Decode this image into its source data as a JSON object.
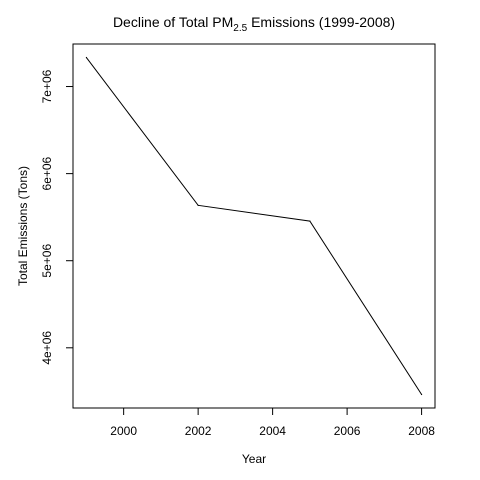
{
  "chart_data": {
    "type": "line",
    "title": {
      "main": "Decline of Total PM",
      "subscript": "2.5",
      "suffix": " Emissions (1999-2008)"
    },
    "xlabel": "Year",
    "ylabel": "Total Emissions (Tons)",
    "x": [
      1999,
      2002,
      2005,
      2008
    ],
    "series": [
      {
        "values": [
          7332967,
          5635780,
          5454703,
          3464206
        ],
        "color": "#000000"
      }
    ],
    "xlim": [
      1998.64,
      2008.36
    ],
    "ylim": [
      3308815,
      7488358
    ],
    "xticks": [
      {
        "value": 2000,
        "label": "2000"
      },
      {
        "value": 2002,
        "label": "2002"
      },
      {
        "value": 2004,
        "label": "2004"
      },
      {
        "value": 2006,
        "label": "2006"
      },
      {
        "value": 2008,
        "label": "2008"
      }
    ],
    "yticks": [
      {
        "value": 4000000,
        "label": "4e+06"
      },
      {
        "value": 5000000,
        "label": "5e+06"
      },
      {
        "value": 6000000,
        "label": "6e+06"
      },
      {
        "value": 7000000,
        "label": "7e+06"
      }
    ],
    "grid": false,
    "legend": "none"
  }
}
